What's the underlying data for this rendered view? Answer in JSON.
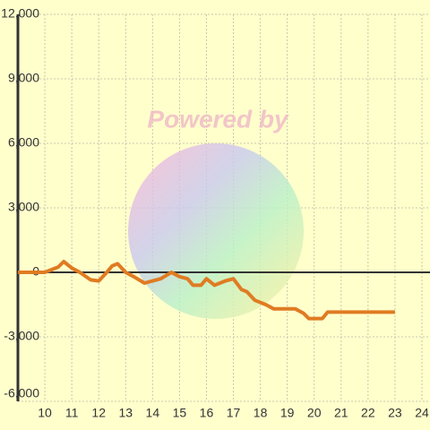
{
  "chart_data": {
    "type": "line",
    "watermark": "Powered by",
    "x": [
      9,
      10,
      10.5,
      10.7,
      11,
      11.3,
      11.7,
      12,
      12.3,
      12.5,
      12.7,
      13,
      13.3,
      13.7,
      14,
      14.3,
      14.7,
      15,
      15.3,
      15.5,
      15.8,
      16,
      16.3,
      16.7,
      17,
      17.3,
      17.5,
      17.8,
      18.2,
      18.5,
      19.3,
      19.6,
      19.8,
      20.3,
      20.5,
      23
    ],
    "series": [
      {
        "color": "#e07b22",
        "values": [
          0,
          0,
          250,
          500,
          200,
          0,
          -350,
          -400,
          0,
          300,
          400,
          0,
          -200,
          -500,
          -400,
          -300,
          0,
          -200,
          -300,
          -600,
          -600,
          -300,
          -600,
          -400,
          -300,
          -800,
          -900,
          -1300,
          -1500,
          -1700,
          -1700,
          -1900,
          -2150,
          -2150,
          -1850,
          -1850
        ]
      }
    ],
    "xlim": [
      9,
      24.3
    ],
    "xticks": [
      10,
      11,
      12,
      13,
      14,
      15,
      16,
      17,
      18,
      19,
      20,
      21,
      22,
      23,
      24
    ],
    "ylim": [
      -6000,
      12000
    ],
    "yticks": [
      {
        "value": -6000,
        "label": "-6,000"
      },
      {
        "value": -3000,
        "label": "-3,000"
      },
      0,
      {
        "value": 3000,
        "label": "3,000"
      },
      {
        "value": 6000,
        "label": "6,000"
      },
      {
        "value": 9000,
        "label": "9,000"
      },
      {
        "value": 12000,
        "label": "12,000"
      }
    ],
    "grid": true
  }
}
